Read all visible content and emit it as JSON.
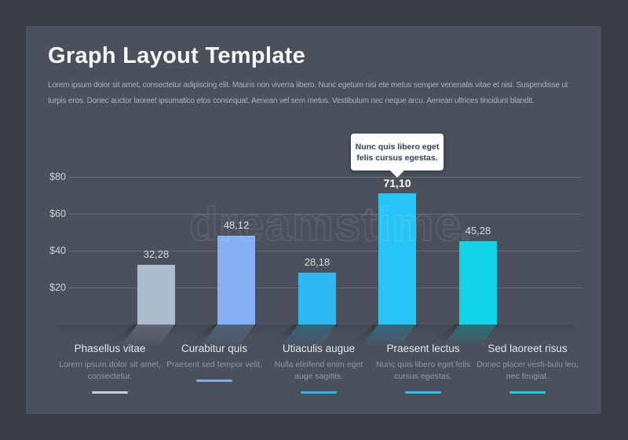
{
  "page": {
    "title": "Graph Layout Template",
    "description_line1": "Lorem ipsum dolor sit amet, consectetur adipiscing elit. Mauris non viverra libero. Nunc egetum nisi ete metus semper venenatis vitae et nisi. Suspendisse ut turpis",
    "description_line2": "eros. Donec auctor laoreet ipsumatico etos consequat. Aenean vel sem metus. Vestibulum nec neque arcu. Aenean ultrices tincidunt blandit."
  },
  "colors": {
    "frame": "#363b44",
    "panel": "#4a515b",
    "title_text": "#f6f8fa",
    "body_text": "#a9b1bb",
    "callout_bg": "#fdfdfd",
    "callout_text": "#36404e"
  },
  "chart_data": {
    "type": "bar",
    "title": "Graph Layout Template",
    "categories": [
      "Phasellus vitae",
      "Curabitur quis",
      "Utiaculis augue",
      "Praesent lectus",
      "Sed laoreet risus"
    ],
    "values": [
      32.28,
      48.12,
      28.18,
      71.1,
      45.28
    ],
    "value_labels": [
      "32,28",
      "48,12",
      "28,18",
      "71,10",
      "45,28"
    ],
    "bar_colors": [
      "#aebbce",
      "#84b1f3",
      "#2fb7f0",
      "#29c4f6",
      "#11d5e6"
    ],
    "highlight_index": 3,
    "xlabel": "",
    "ylabel": "",
    "y_tick_labels": [
      "$80",
      "$60",
      "$40",
      "$20"
    ],
    "y_tick_values": [
      80,
      60,
      40,
      20
    ],
    "ylim": [
      0,
      85
    ],
    "grid": true,
    "legend_position": "bottom",
    "callout": {
      "lines": [
        "Nunc quis libero eget",
        "felis cursus egestas."
      ],
      "target_category": "Praesent lectus"
    }
  },
  "legend": {
    "columns": [
      {
        "title": "Phasellus vitae",
        "description": "Lorem ipsum dolor sit amet, consectetur.",
        "color": "#c6cde0"
      },
      {
        "title": "Curabitur quis",
        "description": "Praesent sed tempor velit.",
        "color": "#7fa9ea"
      },
      {
        "title": "Utiaculis augue",
        "description": "Nulla eleifend enim eget auge sagittis.",
        "color": "#2ab7ea"
      },
      {
        "title": "Praesent lectus",
        "description": "Nunc quis libero eget felis cursus egestas.",
        "color": "#29c2ec"
      },
      {
        "title": "Sed laoreet risus",
        "description": "Donec placer vesti-bulu leo, nec feugiat.",
        "color": "#16cde0"
      }
    ]
  },
  "watermark": {
    "text": "dreamstime",
    "reg_mark": "®"
  }
}
